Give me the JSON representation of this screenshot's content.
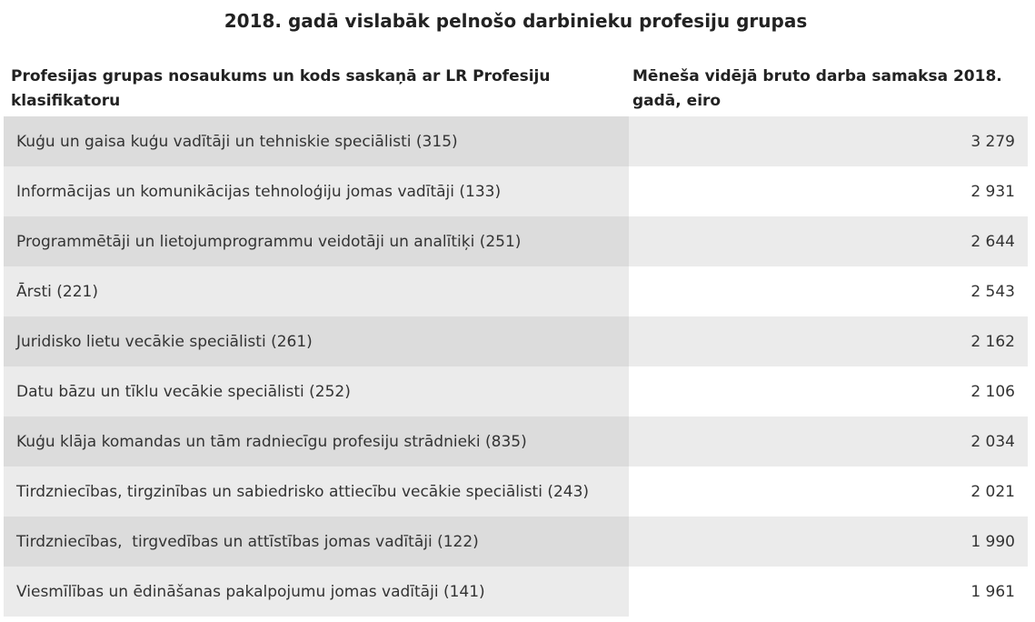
{
  "title": "2018. gadā vislabāk pelnošo darbinieku profesiju grupas",
  "columns": {
    "name": "Profesijas grupas nosaukums un kods saskaņā ar LR Profesiju klasifikatoru",
    "value": "Mēneša vidējā bruto darba samaksa 2018. gadā, eiro"
  },
  "rows": [
    {
      "name": "Kuģu un gaisa kuģu vadītāji un tehniskie speciālisti (315)",
      "value": "3 279"
    },
    {
      "name": "Informācijas un komunikācijas tehnoloģiju jomas vadītāji (133)",
      "value": "2 931"
    },
    {
      "name": "Programmētāji un lietojumprogrammu veidotāji un analītiķi (251)",
      "value": "2 644"
    },
    {
      "name": "Ārsti (221)",
      "value": "2 543"
    },
    {
      "name": "Juridisko lietu vecākie speciālisti (261)",
      "value": "2 162"
    },
    {
      "name": "Datu bāzu un tīklu vecākie speciālisti (252)",
      "value": "2 106"
    },
    {
      "name": "Kuģu klāja komandas un tām radniecīgu profesiju strādnieki (835)",
      "value": "2 034"
    },
    {
      "name": "Tirdzniecības, tirgzinības un sabiedrisko attiecību vecākie speciālisti (243)",
      "value": "2 021"
    },
    {
      "name": "Tirdzniecības,  tirgvedības un attīstības jomas vadītāji (122)",
      "value": "1 990"
    },
    {
      "name": "Viesmīlības un ēdināšanas pakalpojumu jomas vadītāji (141)",
      "value": "1 961"
    }
  ]
}
